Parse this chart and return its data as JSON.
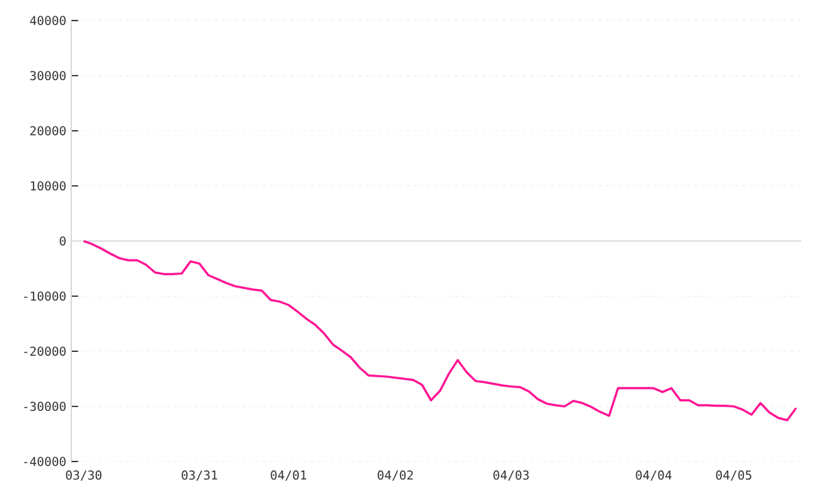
{
  "chart_data": {
    "type": "line",
    "categories": [
      "03/30",
      null,
      null,
      null,
      null,
      null,
      null,
      null,
      null,
      null,
      null,
      null,
      null,
      "03/31",
      null,
      null,
      null,
      null,
      null,
      null,
      null,
      null,
      null,
      "04/01",
      null,
      null,
      null,
      null,
      null,
      null,
      null,
      null,
      null,
      null,
      null,
      "04/02",
      null,
      null,
      null,
      null,
      null,
      null,
      null,
      null,
      null,
      null,
      null,
      null,
      "04/03",
      null,
      null,
      null,
      null,
      null,
      null,
      null,
      null,
      null,
      null,
      null,
      null,
      null,
      null,
      null,
      "04/04",
      null,
      null,
      null,
      null,
      null,
      null,
      null,
      null,
      "04/05",
      null,
      null,
      null,
      null,
      null,
      null,
      null
    ],
    "series": [
      {
        "color": "#ff1493",
        "values": [
          0,
          -600,
          -1400,
          -2300,
          -3100,
          -3500,
          -3500,
          -4300,
          -5700,
          -6000,
          -6000,
          -5900,
          -3700,
          -4100,
          -6200,
          -6900,
          -7600,
          -8200,
          -8500,
          -8800,
          -9000,
          -10700,
          -11000,
          -11600,
          -12800,
          -14100,
          -15200,
          -16800,
          -18800,
          -19900,
          -21100,
          -23000,
          -24400,
          -24500,
          -24600,
          -24800,
          -25000,
          -25200,
          -26100,
          -28900,
          -27200,
          -24100,
          -21600,
          -23800,
          -25400,
          -25600,
          -25900,
          -26200,
          -26400,
          -26500,
          -27300,
          -28700,
          -29500,
          -29800,
          -30000,
          -29000,
          -29400,
          -30100,
          -31000,
          -31700,
          -26700,
          -26700,
          -26700,
          -26700,
          -26700,
          -27400,
          -26700,
          -28900,
          -28900,
          -29800,
          -29800,
          -29900,
          -29900,
          -30000,
          -30600,
          -31500,
          -29400,
          -31100,
          -32100,
          -32500,
          -30300
        ]
      }
    ],
    "ylim": [
      -40000,
      40000
    ],
    "yticks": [
      -40000,
      -30000,
      -20000,
      -10000,
      0,
      10000,
      20000,
      30000,
      40000
    ],
    "grid": "y",
    "ref_lines": [
      {
        "axis": "y",
        "value": 0,
        "color": "#dddddd",
        "line_style": "solid"
      }
    ],
    "marker": "none",
    "line_style": "solid"
  }
}
